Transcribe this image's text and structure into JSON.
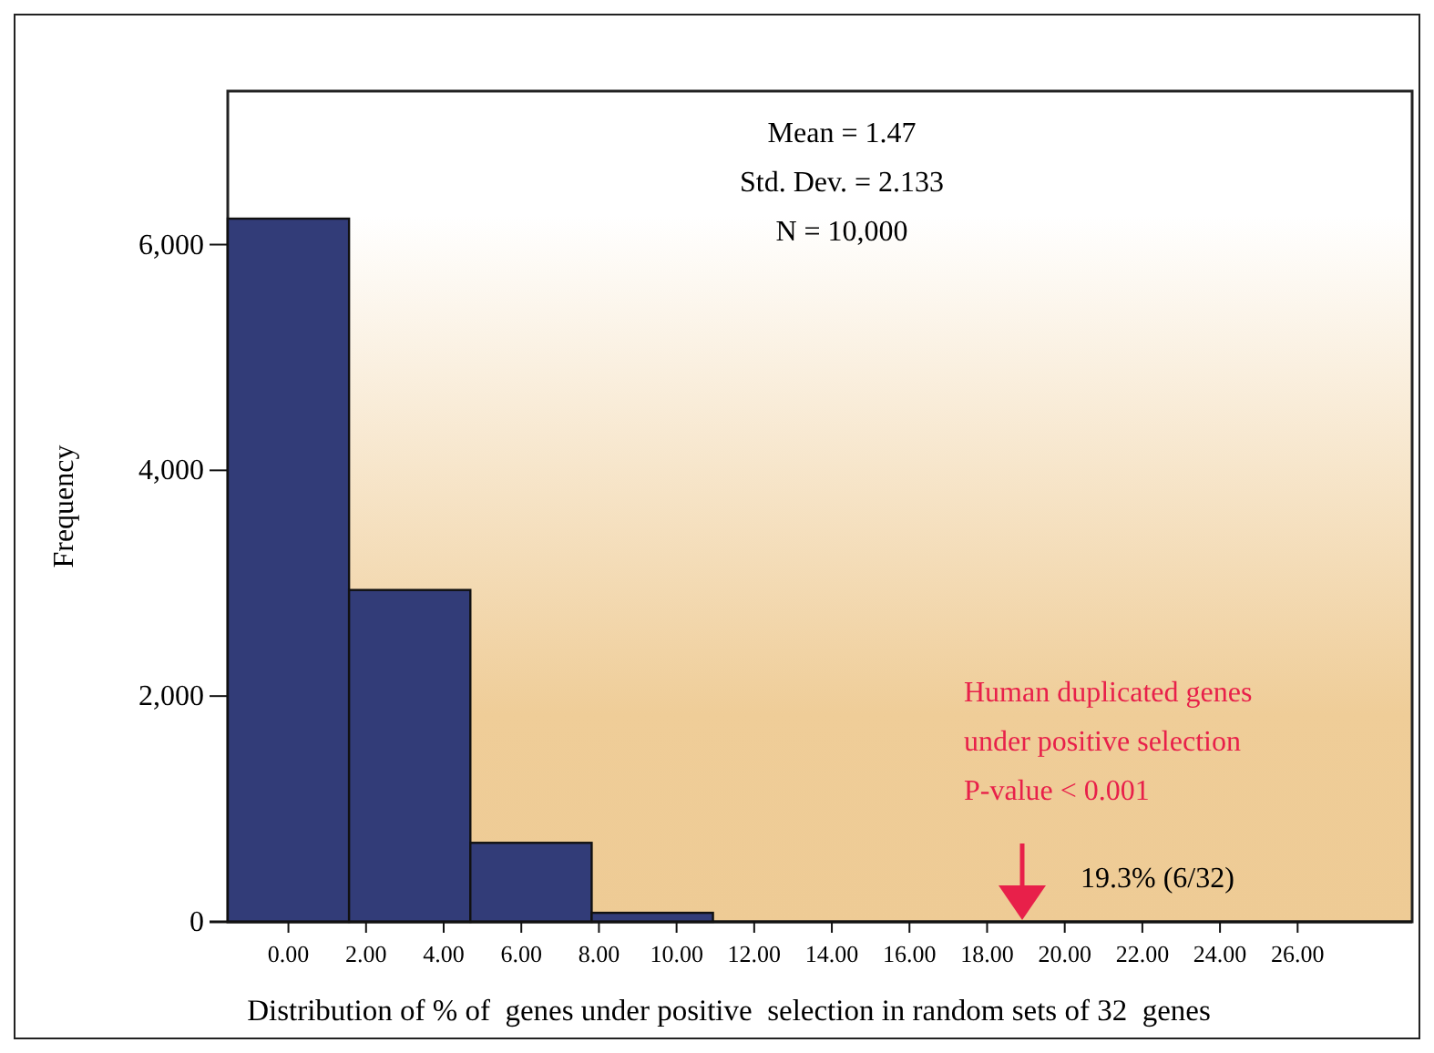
{
  "chart_data": {
    "type": "histogram",
    "xlabel": "Distribution of % of  genes under positive  selection in random sets of 32  genes",
    "ylabel": "Frequency",
    "bins": [
      -1.5625,
      1.5625,
      4.6875,
      7.8125,
      10.9375
    ],
    "values": [
      6230,
      2940,
      700,
      80
    ],
    "color": "#323c78",
    "xlim": [
      -1.5625,
      28.95
    ],
    "xticks": [
      {
        "value": 0,
        "label": "0.00"
      },
      {
        "value": 2,
        "label": "2.00"
      },
      {
        "value": 4,
        "label": "4.00"
      },
      {
        "value": 6,
        "label": "6.00"
      },
      {
        "value": 8,
        "label": "8.00"
      },
      {
        "value": 10,
        "label": "10.00"
      },
      {
        "value": 12,
        "label": "12.00"
      },
      {
        "value": 14,
        "label": "14.00"
      },
      {
        "value": 16,
        "label": "16.00"
      },
      {
        "value": 18,
        "label": "18.00"
      },
      {
        "value": 20,
        "label": "20.00"
      },
      {
        "value": 22,
        "label": "22.00"
      },
      {
        "value": 24,
        "label": "24.00"
      },
      {
        "value": 26,
        "label": "26.00"
      }
    ],
    "ylim": [
      0,
      7360
    ],
    "yticks": [
      0,
      {
        "value": 2000,
        "label": "2,000"
      },
      {
        "value": 4000,
        "label": "4,000"
      },
      {
        "value": 6000,
        "label": "6,000"
      }
    ],
    "grid": false,
    "annotations": [
      "Mean = 1.47",
      "Std. Dev. = 2.133",
      "N = 10,000",
      "Human duplicated genes\nunder positive selection\nP-value < 0.001",
      "19.3% (6/32)"
    ]
  }
}
